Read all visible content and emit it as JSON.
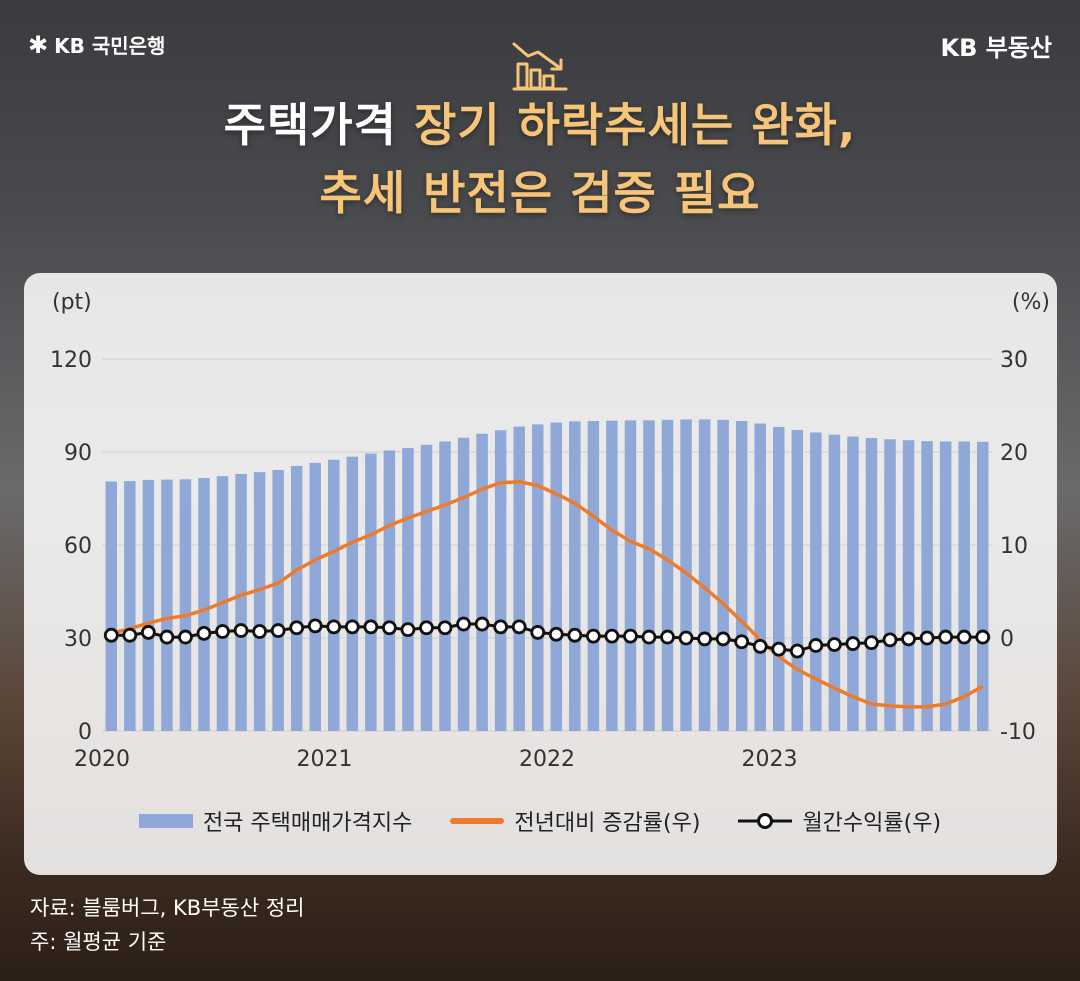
{
  "brand": {
    "left": "KB 국민은행",
    "right": "KB 부동산"
  },
  "header": {
    "icon": "declining-bar-chart-icon",
    "title_line1_white": "주택가격",
    "title_line1_accent": "장기 하락추세는 완화,",
    "title_line2": "추세 반전은 검증 필요"
  },
  "colors": {
    "accent_text": "#f7c579",
    "bar": "#8fa8d8",
    "yoy_line": "#ee7b2c",
    "monthly_line": "#111111"
  },
  "footnotes": {
    "source": "자료: 블룸버그, KB부동산 정리",
    "note": "주: 월평균 기준"
  },
  "chart_data": {
    "type": "bar",
    "left_unit": "(pt)",
    "right_unit": "(%)",
    "x_ticks": [
      "2020",
      "2021",
      "2022",
      "2023"
    ],
    "left_ticks": [
      "120",
      "90",
      "60",
      "30",
      "0"
    ],
    "right_ticks": [
      "30",
      "20",
      "10",
      "0",
      "-10"
    ],
    "ylim_left": [
      0,
      120
    ],
    "ylim_right": [
      -10,
      30
    ],
    "x": [
      "2020-01",
      "2020-02",
      "2020-03",
      "2020-04",
      "2020-05",
      "2020-06",
      "2020-07",
      "2020-08",
      "2020-09",
      "2020-10",
      "2020-11",
      "2020-12",
      "2021-01",
      "2021-02",
      "2021-03",
      "2021-04",
      "2021-05",
      "2021-06",
      "2021-07",
      "2021-08",
      "2021-09",
      "2021-10",
      "2021-11",
      "2021-12",
      "2022-01",
      "2022-02",
      "2022-03",
      "2022-04",
      "2022-05",
      "2022-06",
      "2022-07",
      "2022-08",
      "2022-09",
      "2022-10",
      "2022-11",
      "2022-12",
      "2023-01",
      "2023-02",
      "2023-03",
      "2023-04",
      "2023-05",
      "2023-06",
      "2023-07",
      "2023-08",
      "2023-09",
      "2023-10",
      "2023-11",
      "2023-12"
    ],
    "series": [
      {
        "name": "전국 주택매매가격지수",
        "axis": "left",
        "type": "bar",
        "values": [
          80.5,
          80.6,
          81.0,
          81.1,
          81.2,
          81.6,
          82.2,
          82.9,
          83.5,
          84.2,
          85.5,
          86.5,
          87.5,
          88.5,
          89.5,
          90.5,
          91.3,
          92.3,
          93.4,
          94.6,
          95.9,
          97.0,
          98.2,
          98.9,
          99.5,
          99.9,
          100.0,
          100.1,
          100.2,
          100.2,
          100.4,
          100.5,
          100.5,
          100.4,
          100.0,
          99.2,
          98.1,
          97.1,
          96.3,
          95.6,
          95.0,
          94.5,
          94.1,
          93.8,
          93.5,
          93.4,
          93.4,
          93.3
        ]
      },
      {
        "name": "전년대비 증감률(우)",
        "axis": "right",
        "type": "line",
        "values": [
          0.5,
          1.0,
          1.6,
          2.1,
          2.4,
          3.0,
          3.8,
          4.6,
          5.2,
          5.9,
          7.3,
          8.4,
          9.3,
          10.3,
          11.1,
          12.1,
          12.9,
          13.6,
          14.3,
          15.1,
          16.0,
          16.7,
          16.8,
          16.4,
          15.5,
          14.5,
          13.1,
          11.6,
          10.4,
          9.6,
          8.4,
          7.0,
          5.4,
          3.7,
          1.8,
          -0.2,
          -2.0,
          -3.4,
          -4.4,
          -5.4,
          -6.3,
          -7.1,
          -7.3,
          -7.4,
          -7.4,
          -7.1,
          -6.3,
          -5.2
        ]
      },
      {
        "name": "월간수익률(우)",
        "axis": "right",
        "type": "line",
        "values": [
          0.3,
          0.3,
          0.6,
          0.1,
          0.1,
          0.5,
          0.7,
          0.8,
          0.7,
          0.8,
          1.1,
          1.3,
          1.2,
          1.2,
          1.2,
          1.1,
          0.9,
          1.1,
          1.1,
          1.5,
          1.5,
          1.2,
          1.2,
          0.6,
          0.4,
          0.3,
          0.2,
          0.2,
          0.2,
          0.1,
          0.1,
          0.0,
          -0.1,
          -0.1,
          -0.4,
          -0.9,
          -1.2,
          -1.4,
          -0.8,
          -0.7,
          -0.6,
          -0.5,
          -0.2,
          -0.1,
          0.0,
          0.1,
          0.1,
          0.1
        ]
      }
    ],
    "legend_placement": "bottom",
    "grid": "horizontal"
  }
}
